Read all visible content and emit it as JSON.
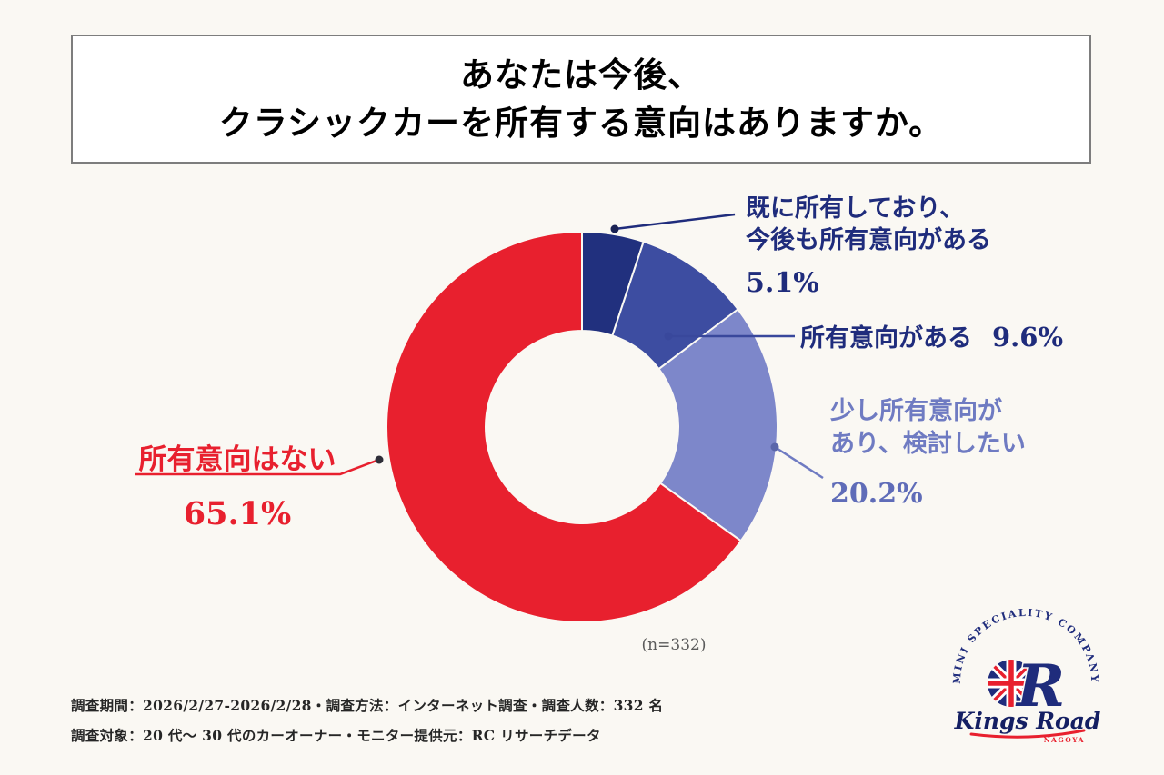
{
  "title": {
    "line1": "あなたは今後、",
    "line2": "クラシックカーを所有する意向はありますか。"
  },
  "chart_data": {
    "type": "pie",
    "donut": true,
    "title": "あなたは今後、クラシックカーを所有する意向はありますか。",
    "categories": [
      "既に所有しており、今後も所有意向がある",
      "所有意向がある",
      "少し所有意向があり、検討したい",
      "所有意向はない"
    ],
    "values": [
      5.1,
      9.6,
      20.2,
      65.1
    ],
    "unit": "%",
    "n": 332,
    "n_label": "(n=332)",
    "start_angle_deg": 0,
    "direction": "clockwise",
    "colors": [
      "#21307E",
      "#3D4DA1",
      "#7D87CA",
      "#E8202E"
    ],
    "legend_position": "callout-labels"
  },
  "callouts": {
    "seg1": {
      "line1": "既に所有しており、",
      "line2": "今後も所有意向がある",
      "pct": "5.1%"
    },
    "seg2": {
      "text": "所有意向がある",
      "pct": "9.6%"
    },
    "seg3": {
      "line1": "少し所有意向が",
      "line2": "あり、検討したい",
      "pct": "20.2%"
    },
    "seg4": {
      "text": "所有意向はない",
      "pct": "65.1%"
    }
  },
  "footnote": {
    "line1": "調査期間：2026/2/27-2026/2/28・調査方法：インターネット調査・調査人数：332 名",
    "line2": "調査対象：20 代〜 30 代のカーオーナー・モニター提供元：RC リサーチデータ"
  },
  "logo": {
    "arc_text": "MINI SPECIALITY COMPANY",
    "letter": "R",
    "brand": "Kings Road",
    "sub": "NAGOYA"
  },
  "colors": {
    "background": "#FAF8F3",
    "navy_text": "#1F2C7C",
    "periwinkle_text": "#6F7BC2",
    "red": "#E8202E"
  }
}
